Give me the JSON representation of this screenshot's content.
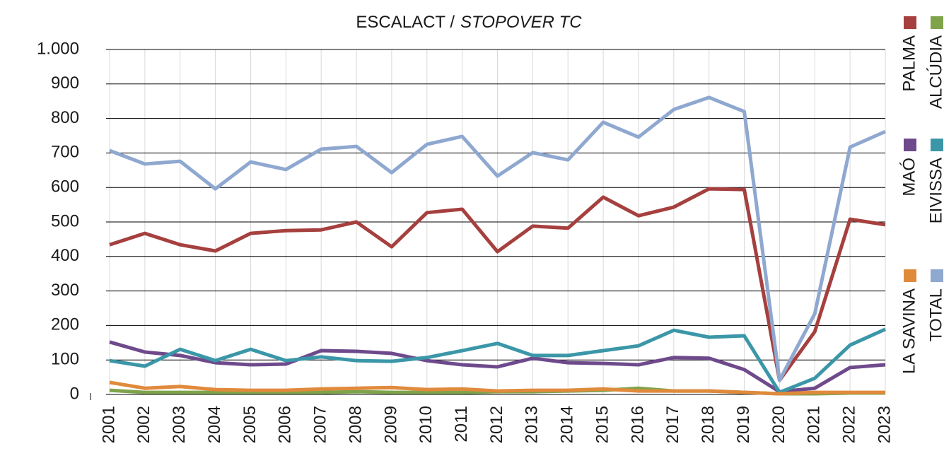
{
  "chart_data": {
    "type": "line",
    "title": [
      "ESCALACT /",
      "STOPOVER TC"
    ],
    "categories": [
      "2001",
      "2002",
      "2003",
      "2004",
      "2005",
      "2006",
      "2007",
      "2008",
      "2009",
      "2010",
      "2011",
      "2012",
      "2013",
      "2014",
      "2015",
      "2016",
      "2017",
      "2018",
      "2019",
      "2020",
      "2021",
      "2022",
      "2023"
    ],
    "series": [
      {
        "name": "PALMA",
        "color": "#a5403f",
        "values": [
          434,
          467,
          434,
          416,
          467,
          475,
          477,
          500,
          428,
          527,
          537,
          414,
          488,
          482,
          572,
          518,
          543,
          596,
          594,
          41,
          182,
          508,
          492
        ]
      },
      {
        "name": "ALCÚDIA",
        "color": "#7fa34b",
        "values": [
          12,
          6,
          6,
          6,
          6,
          6,
          6,
          8,
          6,
          6,
          6,
          8,
          8,
          10,
          12,
          18,
          10,
          10,
          6,
          2,
          2,
          4,
          4
        ]
      },
      {
        "name": "MAÓ",
        "color": "#6e4a8c",
        "values": [
          152,
          123,
          113,
          92,
          86,
          88,
          127,
          125,
          119,
          98,
          86,
          80,
          105,
          92,
          90,
          86,
          107,
          105,
          72,
          8,
          18,
          78,
          86
        ]
      },
      {
        "name": "EIVISSA",
        "color": "#3b97a8",
        "values": [
          98,
          82,
          131,
          98,
          131,
          98,
          109,
          98,
          96,
          107,
          127,
          148,
          113,
          113,
          127,
          141,
          186,
          166,
          170,
          6,
          47,
          143,
          189
        ]
      },
      {
        "name": "LA SAVINA",
        "color": "#e08a3c",
        "values": [
          35,
          18,
          23,
          14,
          12,
          12,
          16,
          18,
          20,
          14,
          16,
          10,
          12,
          12,
          16,
          10,
          10,
          10,
          6,
          2,
          6,
          6,
          6
        ]
      },
      {
        "name": "TOTAL",
        "color": "#8fa8d0",
        "values": [
          707,
          668,
          676,
          596,
          674,
          652,
          711,
          719,
          643,
          725,
          748,
          633,
          701,
          680,
          789,
          746,
          826,
          861,
          820,
          41,
          234,
          717,
          762
        ]
      }
    ],
    "ylim": [
      0,
      1000
    ],
    "yticks": [
      0,
      100,
      200,
      300,
      400,
      500,
      600,
      700,
      800,
      900,
      {
        "value": 1000,
        "label": "1.000"
      }
    ],
    "grid": true
  }
}
